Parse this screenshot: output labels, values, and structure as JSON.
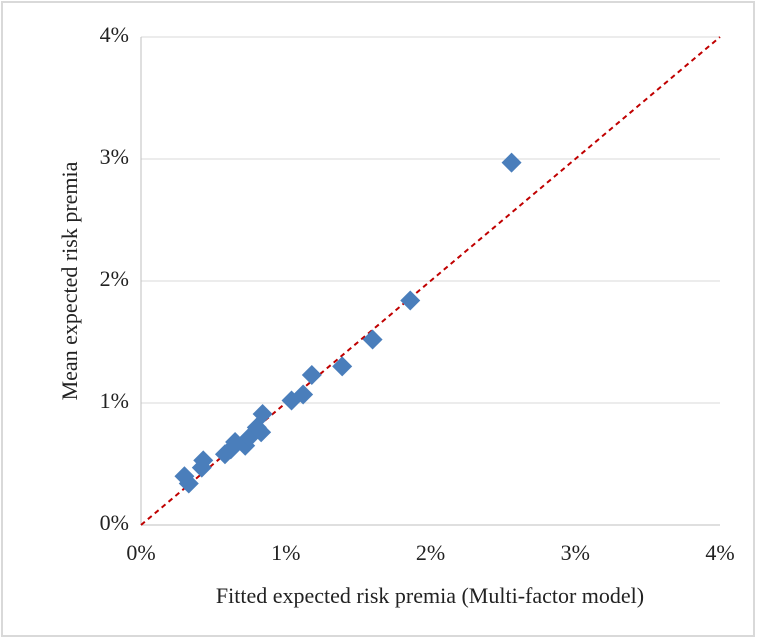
{
  "chart_data": {
    "type": "scatter",
    "x_label": "Fitted expected risk premia (Multi-factor model)",
    "y_label": "Mean expected risk premia",
    "x": [
      0.3,
      0.33,
      0.42,
      0.43,
      0.58,
      0.62,
      0.65,
      0.72,
      0.75,
      0.8,
      0.83,
      0.84,
      1.04,
      1.12,
      1.18,
      1.39,
      1.6,
      1.86,
      2.56
    ],
    "values": [
      0.4,
      0.34,
      0.47,
      0.53,
      0.58,
      0.62,
      0.68,
      0.65,
      0.72,
      0.8,
      0.76,
      0.91,
      1.02,
      1.07,
      1.23,
      1.3,
      1.52,
      1.84,
      2.97
    ],
    "color": "#4a7ebb",
    "xlim": [
      0,
      4
    ],
    "ylim": [
      0,
      4
    ],
    "xticks": [
      {
        "value": 0,
        "label": "0%"
      },
      {
        "value": 1,
        "label": "1%"
      },
      {
        "value": 2,
        "label": "2%"
      },
      {
        "value": 3,
        "label": "3%"
      },
      {
        "value": 4,
        "label": "4%"
      }
    ],
    "yticks": [
      {
        "value": 0,
        "label": "0%"
      },
      {
        "value": 1,
        "label": "1%"
      },
      {
        "value": 2,
        "label": "2%"
      },
      {
        "value": 3,
        "label": "3%"
      },
      {
        "value": 4,
        "label": "4%"
      }
    ],
    "grid": true
  }
}
